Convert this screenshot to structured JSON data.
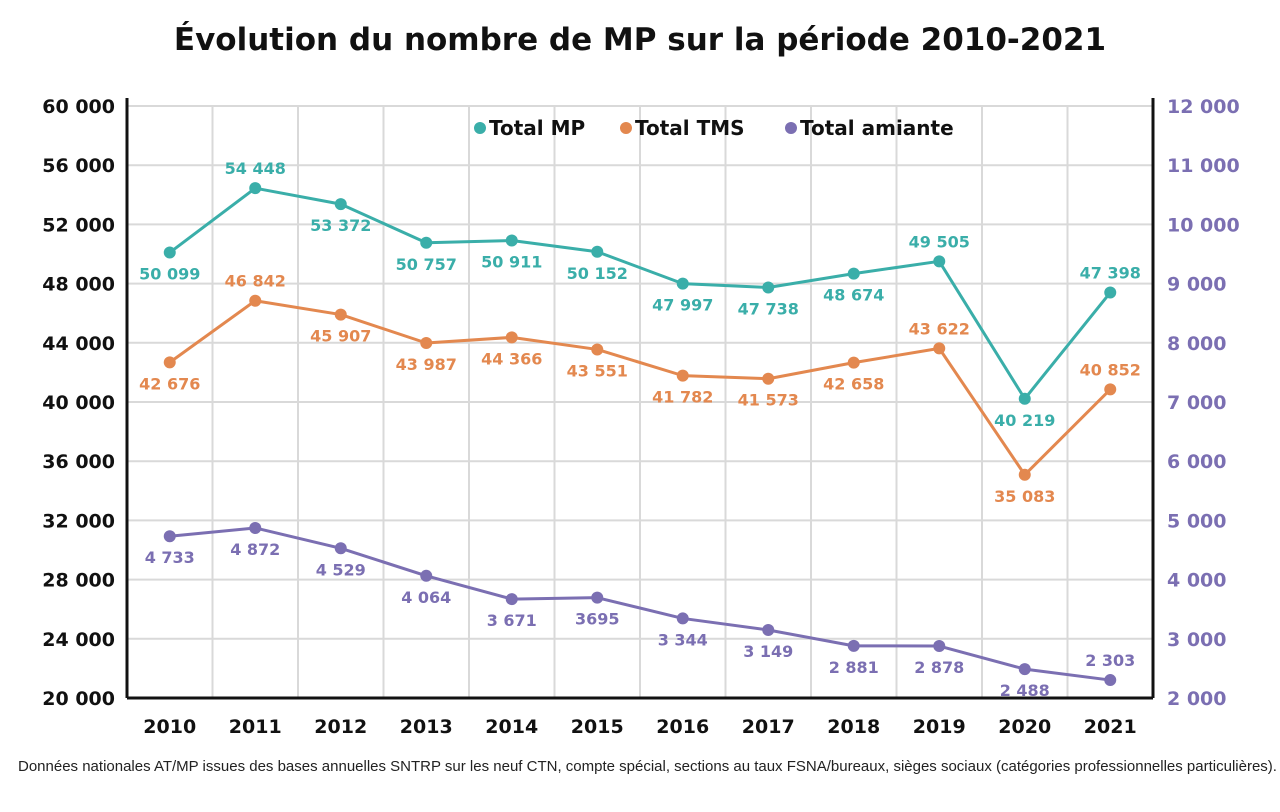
{
  "chart_data": {
    "type": "line",
    "title": "Évolution du nombre de MP sur la période 2010-2021",
    "footnote": "Données nationales AT/MP issues des bases annuelles SNTRP sur les neuf CTN, compte spécial, sections au taux FSNA/bureaux, sièges sociaux (catégories professionnelles particulières).",
    "x": [
      "2010",
      "2011",
      "2012",
      "2013",
      "2014",
      "2015",
      "2016",
      "2017",
      "2018",
      "2019",
      "2020",
      "2021"
    ],
    "y_left": {
      "range": [
        20000,
        60000
      ],
      "ticks": [
        20000,
        24000,
        28000,
        32000,
        36000,
        40000,
        44000,
        48000,
        52000,
        56000,
        60000
      ],
      "tick_labels": [
        "20 000",
        "24 000",
        "28 000",
        "32 000",
        "36 000",
        "40 000",
        "44 000",
        "48 000",
        "52 000",
        "56 000",
        "60 000"
      ]
    },
    "y_right": {
      "range": [
        2000,
        12000
      ],
      "ticks": [
        2000,
        3000,
        4000,
        5000,
        6000,
        7000,
        8000,
        9000,
        10000,
        11000,
        12000
      ],
      "tick_labels": [
        "2 000",
        "3 000",
        "4 000",
        "5 000",
        "6 000",
        "7 000",
        "8 000",
        "9 000",
        "10 000",
        "11 000",
        "12 000"
      ],
      "color": "#7b6fb2"
    },
    "grid": true,
    "legend_position": "top",
    "series": [
      {
        "name": "Total MP",
        "axis": "left",
        "color": "#3aaea9",
        "values": [
          50099,
          54448,
          53372,
          50757,
          50911,
          50152,
          47997,
          47738,
          48674,
          49505,
          40219,
          47398
        ],
        "labels": [
          "50 099",
          "54 448",
          "53 372",
          "50 757",
          "50 911",
          "50 152",
          "47 997",
          "47 738",
          "48 674",
          "49 505",
          "40 219",
          "47 398"
        ]
      },
      {
        "name": "Total TMS",
        "axis": "left",
        "color": "#e3884f",
        "values": [
          42676,
          46842,
          45907,
          43987,
          44366,
          43551,
          41782,
          41573,
          42658,
          43622,
          35083,
          40852
        ],
        "labels": [
          "42 676",
          "46 842",
          "45 907",
          "43 987",
          "44 366",
          "43 551",
          "41 782",
          "41 573",
          "42 658",
          "43 622",
          "35 083",
          "40 852"
        ]
      },
      {
        "name": "Total amiante",
        "axis": "right",
        "color": "#7b6fb2",
        "values": [
          4733,
          4872,
          4529,
          4064,
          3671,
          3695,
          3344,
          3149,
          2881,
          2878,
          2488,
          2303
        ],
        "labels": [
          "4 733",
          "4 872",
          "4 529",
          "4 064",
          "3 671",
          "3695",
          "3 344",
          "3 149",
          "2 881",
          "2 878",
          "2 488",
          "2 303"
        ]
      }
    ]
  }
}
